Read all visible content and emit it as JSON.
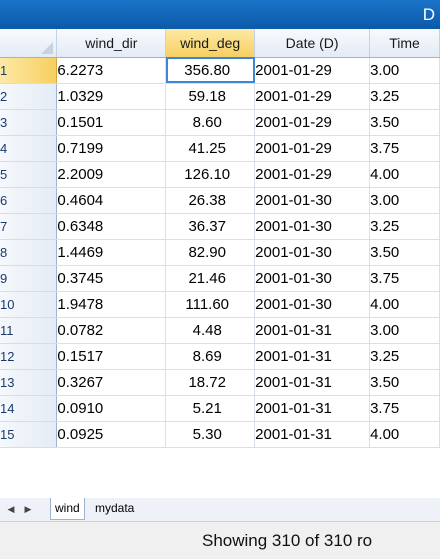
{
  "window": {
    "title_fragment": "D"
  },
  "grid": {
    "columns": [
      "wind_dir",
      "wind_deg",
      "Date (D)",
      "Time"
    ],
    "selected_column": 1,
    "active_row": 0,
    "rows": [
      {
        "id": "1",
        "cells": [
          "6.2273",
          "356.80",
          "2001-01-29",
          "3.00"
        ]
      },
      {
        "id": "2",
        "cells": [
          "1.0329",
          "59.18",
          "2001-01-29",
          "3.25"
        ]
      },
      {
        "id": "3",
        "cells": [
          "0.1501",
          "8.60",
          "2001-01-29",
          "3.50"
        ]
      },
      {
        "id": "4",
        "cells": [
          "0.7199",
          "41.25",
          "2001-01-29",
          "3.75"
        ]
      },
      {
        "id": "5",
        "cells": [
          "2.2009",
          "126.10",
          "2001-01-29",
          "4.00"
        ]
      },
      {
        "id": "6",
        "cells": [
          "0.4604",
          "26.38",
          "2001-01-30",
          "3.00"
        ]
      },
      {
        "id": "7",
        "cells": [
          "0.6348",
          "36.37",
          "2001-01-30",
          "3.25"
        ]
      },
      {
        "id": "8",
        "cells": [
          "1.4469",
          "82.90",
          "2001-01-30",
          "3.50"
        ]
      },
      {
        "id": "9",
        "cells": [
          "0.3745",
          "21.46",
          "2001-01-30",
          "3.75"
        ]
      },
      {
        "id": "10",
        "cells": [
          "1.9478",
          "111.60",
          "2001-01-30",
          "4.00"
        ]
      },
      {
        "id": "11",
        "cells": [
          "0.0782",
          "4.48",
          "2001-01-31",
          "3.00"
        ]
      },
      {
        "id": "12",
        "cells": [
          "0.1517",
          "8.69",
          "2001-01-31",
          "3.25"
        ]
      },
      {
        "id": "13",
        "cells": [
          "0.3267",
          "18.72",
          "2001-01-31",
          "3.50"
        ]
      },
      {
        "id": "14",
        "cells": [
          "0.0910",
          "5.21",
          "2001-01-31",
          "3.75"
        ]
      },
      {
        "id": "15",
        "cells": [
          "0.0925",
          "5.30",
          "2001-01-31",
          "4.00"
        ]
      }
    ]
  },
  "tabs": {
    "prev_icon": "triangle-left-icon",
    "next_icon": "triangle-right-icon",
    "items": [
      {
        "label": "wind",
        "active": true
      },
      {
        "label": "mydata",
        "active": false
      }
    ]
  },
  "status": {
    "text": "Showing 310 of 310 ro"
  },
  "colors": {
    "title_bar": "#1b73c8",
    "selected_header": "#f7cf61",
    "active_cell_border": "#3f86d8"
  }
}
